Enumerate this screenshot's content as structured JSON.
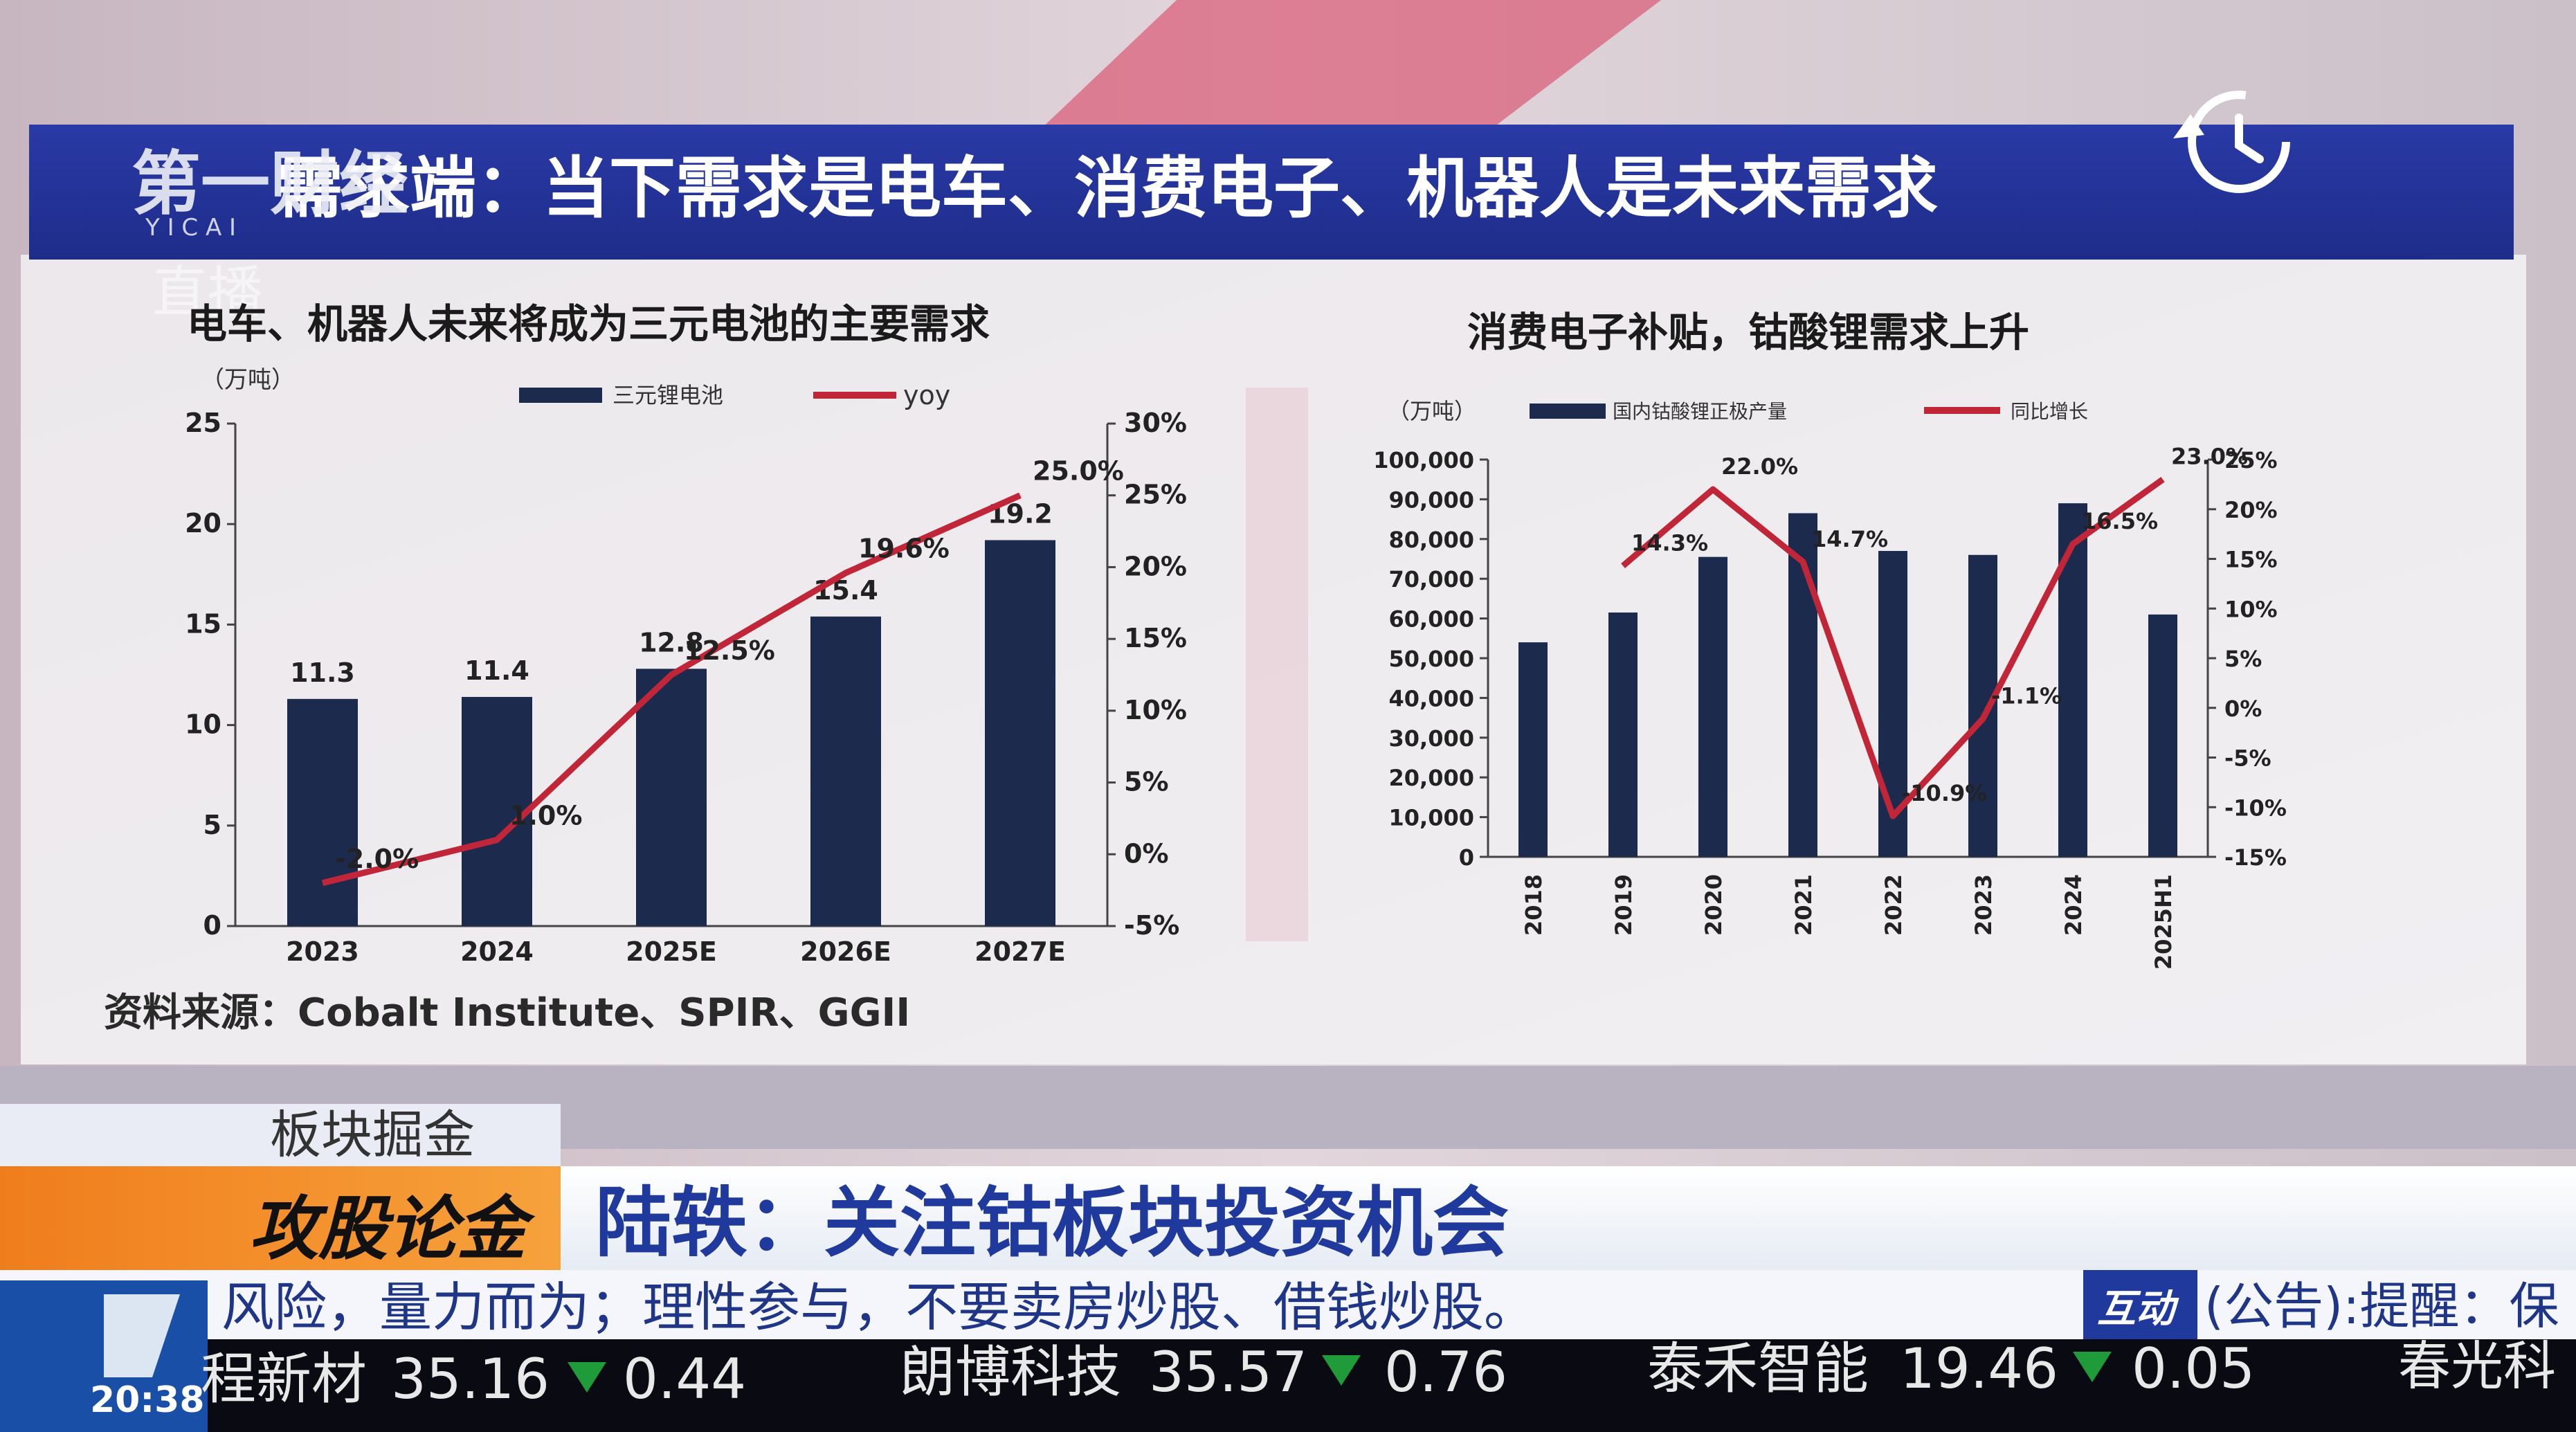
{
  "broadcast": {
    "logo": "第一财经",
    "logo_sub": "Y I C A I",
    "live": "直播",
    "banner_title": "需求端：当下需求是电车、消费电子、机器人是未来需求"
  },
  "slide": {
    "source": "资料来源：Cobalt Institute、SPIR、GGII"
  },
  "chart_data": [
    {
      "type": "bar",
      "title": "电车、机器人未来将成为三元电池的主要需求",
      "y_unit": "（万吨）",
      "categories": [
        "2023",
        "2024",
        "2025E",
        "2026E",
        "2027E"
      ],
      "series": [
        {
          "name": "三元锂电池",
          "type": "bar",
          "axis": "left",
          "values": [
            11.3,
            11.4,
            12.8,
            15.4,
            19.2
          ],
          "labels": [
            "11.3",
            "11.4",
            "12.8",
            "15.4",
            "19.2"
          ]
        },
        {
          "name": "yoy",
          "type": "line",
          "axis": "right",
          "values": [
            -2.0,
            1.0,
            12.5,
            19.6,
            25.0
          ],
          "labels": [
            "-2.0%",
            "1.0%",
            "12.5%",
            "19.6%",
            "25.0%"
          ]
        }
      ],
      "ylim_left": [
        0,
        25
      ],
      "yticks_left": [
        "0",
        "5",
        "10",
        "15",
        "20",
        "25"
      ],
      "ylim_right": [
        -5,
        30
      ],
      "yticks_right": [
        "-5%",
        "0%",
        "5%",
        "10%",
        "15%",
        "20%",
        "25%",
        "30%"
      ],
      "legend": "top",
      "colors": {
        "bar": "#1c2a4e",
        "line": "#c02638"
      }
    },
    {
      "type": "bar",
      "title": "消费电子补贴，钴酸锂需求上升",
      "y_unit": "（万吨）",
      "categories": [
        "2018",
        "2019",
        "2020",
        "2021",
        "2022",
        "2023",
        "2024",
        "2025H1"
      ],
      "series": [
        {
          "name": "国内钴酸锂正极产量",
          "type": "bar",
          "axis": "left",
          "values": [
            54000,
            61500,
            75500,
            86500,
            77000,
            76000,
            89000,
            61000
          ]
        },
        {
          "name": "同比增长",
          "type": "line",
          "axis": "right",
          "values": [
            null,
            14.3,
            22.0,
            14.7,
            -10.9,
            -1.1,
            16.5,
            23.0
          ],
          "labels": [
            "",
            "14.3%",
            "22.0%",
            "14.7%",
            "-10.9%",
            "-1.1%",
            "16.5%",
            "23.0%"
          ]
        }
      ],
      "ylim_left": [
        0,
        100000
      ],
      "yticks_left": [
        "0",
        "10,000",
        "20,000",
        "30,000",
        "40,000",
        "50,000",
        "60,000",
        "70,000",
        "80,000",
        "90,000",
        "100,000"
      ],
      "ylim_right": [
        -15,
        25
      ],
      "yticks_right": [
        "-15%",
        "-10%",
        "-5%",
        "0%",
        "5%",
        "10%",
        "15%",
        "20%",
        "25%"
      ],
      "legend": "top",
      "colors": {
        "bar": "#1c2a4e",
        "line": "#c02638"
      }
    }
  ],
  "lower_third": {
    "section_label": "板块掘金",
    "show_logo": "攻股论金",
    "headline": "陆轶：关注钴板块投资机会"
  },
  "ticker": {
    "risk_text": "风险，量力而为；理性参与，不要卖房炒股、借钱炒股。",
    "interactive_badge": "互动",
    "notice_text": "(公告):提醒：保",
    "time": "20:38",
    "stocks": [
      {
        "name": "程新材",
        "price": "35.16",
        "change": "0.44"
      },
      {
        "name": "朗博科技",
        "price": "35.57",
        "change": "0.76"
      },
      {
        "name": "泰禾智能",
        "price": "19.46",
        "change": "0.05"
      },
      {
        "name": "春光科",
        "price": "",
        "change": ""
      }
    ]
  },
  "icons": {
    "replay": "replay-icon",
    "down": "down-triangle-icon"
  }
}
